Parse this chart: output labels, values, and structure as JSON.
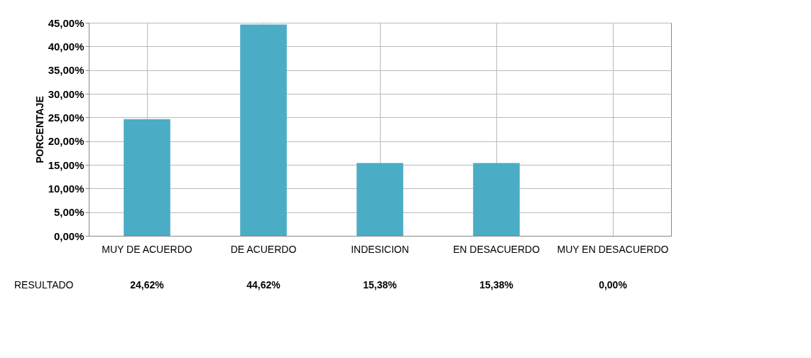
{
  "chart_data": {
    "type": "bar",
    "ylabel": "PORCENTAJE",
    "categories": [
      "MUY DE ACUERDO",
      "DE ACUERDO",
      "INDESICION",
      "EN DESACUERDO",
      "MUY EN DESACUERDO"
    ],
    "series": [
      {
        "name": "RESULTADO",
        "color": "#4bacc6",
        "values": [
          24.62,
          44.62,
          15.38,
          15.38,
          0.0
        ],
        "value_labels": [
          "24,62%",
          "44,62%",
          "15,38%",
          "15,38%",
          "0,00%"
        ]
      }
    ],
    "ylim": [
      0,
      45
    ],
    "yticks": [
      {
        "value": 0,
        "label": "0,00%"
      },
      {
        "value": 5,
        "label": "5,00%"
      },
      {
        "value": 10,
        "label": "10,00%"
      },
      {
        "value": 15,
        "label": "15,00%"
      },
      {
        "value": 20,
        "label": "20,00%"
      },
      {
        "value": 25,
        "label": "25,00%"
      },
      {
        "value": 30,
        "label": "30,00%"
      },
      {
        "value": 35,
        "label": "35,00%"
      },
      {
        "value": 40,
        "label": "40,00%"
      },
      {
        "value": 45,
        "label": "45,00%"
      }
    ],
    "grid": true
  }
}
